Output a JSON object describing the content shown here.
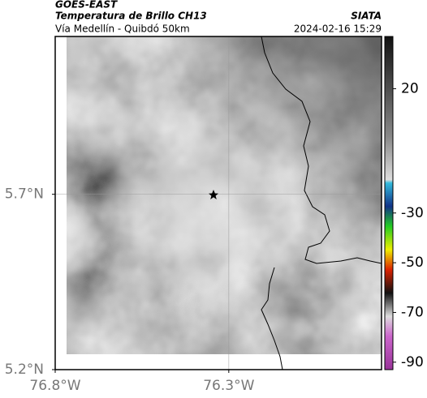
{
  "header": {
    "satellite": "GOES-EAST",
    "product": "Temperatura de Brillo CH13",
    "route": "Vía Medellín - Quibdó 50km",
    "source": "SIATA",
    "timestamp": "2024-02-16 15:29"
  },
  "map": {
    "xlim": [
      -76.8,
      -75.86
    ],
    "ylim": [
      5.2,
      6.15
    ],
    "xticks": [
      {
        "value": -76.8,
        "label": "76.8°W"
      },
      {
        "value": -76.3,
        "label": "76.3°W"
      }
    ],
    "yticks": [
      {
        "value": 5.7,
        "label": "5.7°N"
      },
      {
        "value": 5.2,
        "label": "5.2°N"
      }
    ],
    "grid": true
  },
  "colorbar": {
    "clim": [
      -93,
      41
    ],
    "ticks": [
      20,
      -30,
      -50,
      -70,
      -90
    ]
  }
}
